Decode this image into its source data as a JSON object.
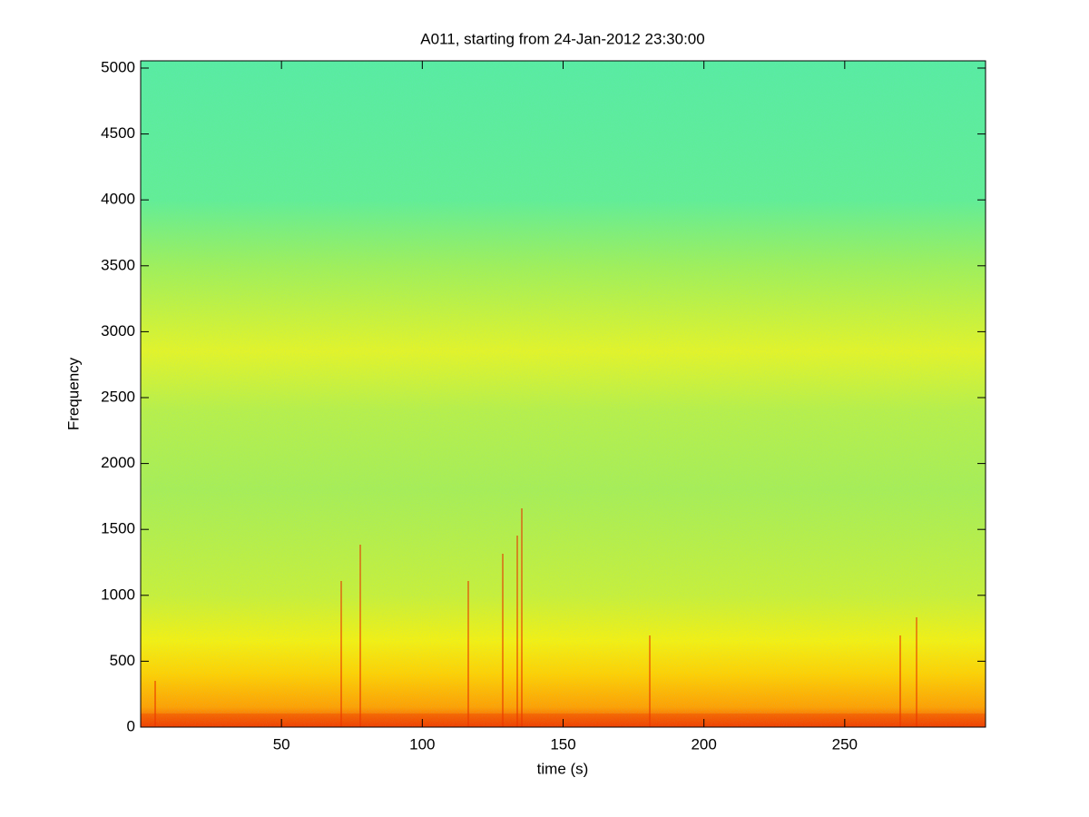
{
  "chart_data": {
    "type": "spectrogram",
    "title": "A011, starting from 24-Jan-2012 23:30:00",
    "x_label": "time (s)",
    "y_label": "Frequency",
    "xlim": [
      0,
      300
    ],
    "xticks": [
      50,
      100,
      150,
      200,
      250
    ],
    "ylim": [
      0,
      5055
    ],
    "yticks": [
      0,
      500,
      1000,
      1500,
      2000,
      2500,
      3000,
      3500,
      4000,
      4500,
      5000
    ]
  }
}
